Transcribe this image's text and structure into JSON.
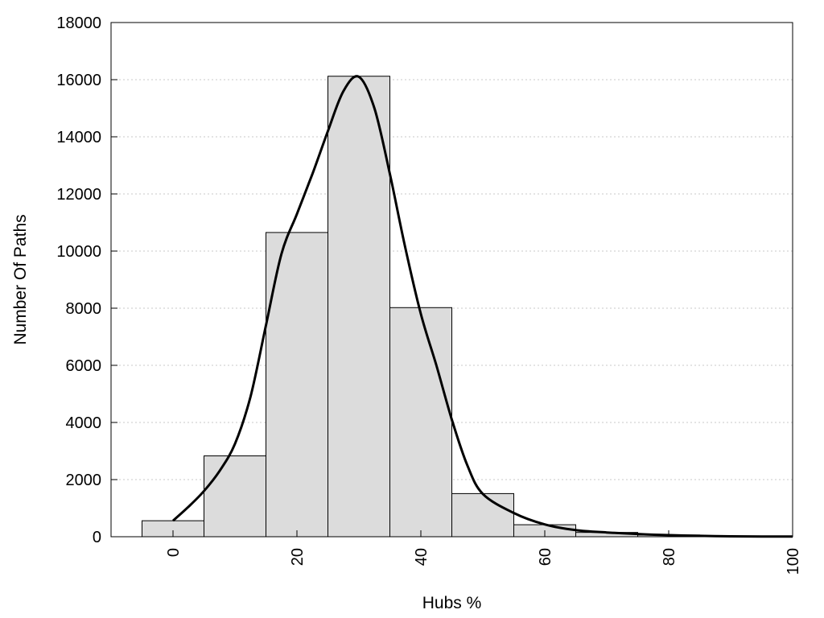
{
  "chart_data": {
    "type": "bar",
    "title": "",
    "xlabel": "Hubs %",
    "ylabel": "Number Of Paths",
    "xlim": [
      -10,
      100
    ],
    "ylim": [
      0,
      18000
    ],
    "xticks": [
      0,
      20,
      40,
      60,
      80,
      100
    ],
    "yticks": [
      0,
      2000,
      4000,
      6000,
      8000,
      10000,
      12000,
      14000,
      16000,
      18000
    ],
    "grid": "horizontal-dotted",
    "legend": "none",
    "bar_color": "#dcdcdc",
    "bins": [
      {
        "x": 0,
        "value": 560
      },
      {
        "x": 10,
        "value": 2830
      },
      {
        "x": 20,
        "value": 10650
      },
      {
        "x": 30,
        "value": 16120
      },
      {
        "x": 40,
        "value": 8020
      },
      {
        "x": 50,
        "value": 1510
      },
      {
        "x": 60,
        "value": 420
      },
      {
        "x": 70,
        "value": 150
      },
      {
        "x": 80,
        "value": 60
      },
      {
        "x": 90,
        "value": 20
      }
    ],
    "bin_width": 10,
    "curve": {
      "x": [
        0,
        2.5,
        5,
        7.5,
        10,
        12.5,
        15,
        17.5,
        20,
        22.5,
        25,
        27.5,
        30,
        32.5,
        35,
        37.5,
        40,
        42.5,
        45,
        47.5,
        50,
        55,
        60,
        65,
        70,
        75,
        80,
        85,
        90,
        95,
        100
      ],
      "y": [
        560,
        1050,
        1600,
        2300,
        3250,
        4900,
        7400,
        9900,
        11300,
        12700,
        14200,
        15600,
        16100,
        15000,
        12700,
        10100,
        7800,
        6000,
        4100,
        2500,
        1500,
        830,
        430,
        230,
        150,
        95,
        55,
        30,
        15,
        8,
        5
      ]
    }
  }
}
